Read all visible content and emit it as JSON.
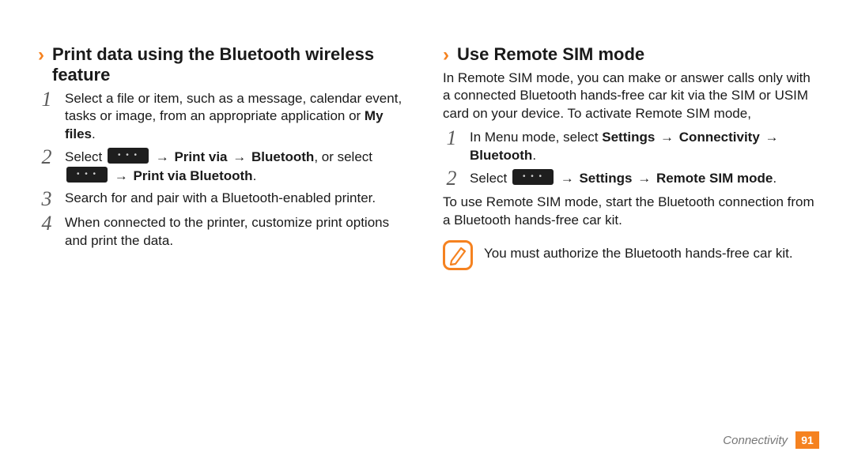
{
  "colors": {
    "accent": "#f58220",
    "text": "#1a1a1a",
    "step_num": "#5a5a5a",
    "dots_btn_bg": "#1e1e1e",
    "dots_btn_fg": "#cfcfcf",
    "footer_text": "#777777",
    "page_bg": "#ffffff"
  },
  "typography": {
    "heading_fontsize": 22,
    "body_fontsize": 17,
    "stepnum_fontsize": 26,
    "footer_fontsize": 15
  },
  "left": {
    "heading": "Print data using the Bluetooth wireless feature",
    "steps": [
      {
        "num": "1",
        "parts": [
          {
            "t": "Select a file or item, such as a message, calendar event, tasks or image, from an appropriate application or "
          },
          {
            "t": "My files",
            "bold": true
          },
          {
            "t": "."
          }
        ]
      },
      {
        "num": "2",
        "parts": [
          {
            "t": "Select "
          },
          {
            "dots": true
          },
          {
            "t": " → ",
            "arrow": true
          },
          {
            "t": "Print via",
            "bold": true
          },
          {
            "t": " → ",
            "arrow": true
          },
          {
            "t": "Bluetooth",
            "bold": true
          },
          {
            "t": ", or select "
          },
          {
            "dots": true
          },
          {
            "t": " → ",
            "arrow": true
          },
          {
            "t": "Print via Bluetooth",
            "bold": true
          },
          {
            "t": "."
          }
        ]
      },
      {
        "num": "3",
        "parts": [
          {
            "t": "Search for and pair with a Bluetooth-enabled printer."
          }
        ]
      },
      {
        "num": "4",
        "parts": [
          {
            "t": "When connected to the printer, customize print options and print the data."
          }
        ]
      }
    ]
  },
  "right": {
    "heading": "Use Remote SIM mode",
    "intro": "In Remote SIM mode, you can make or answer calls only with a connected Bluetooth hands-free car kit via the SIM or USIM card on your device. To activate Remote SIM mode,",
    "steps": [
      {
        "num": "1",
        "parts": [
          {
            "t": "In Menu mode, select "
          },
          {
            "t": "Settings",
            "bold": true
          },
          {
            "t": " → ",
            "arrow": true
          },
          {
            "t": "Connectivity",
            "bold": true
          },
          {
            "t": " → ",
            "arrow": true
          },
          {
            "t": "Bluetooth",
            "bold": true
          },
          {
            "t": "."
          }
        ]
      },
      {
        "num": "2",
        "parts": [
          {
            "t": "Select "
          },
          {
            "dots": true
          },
          {
            "t": " → ",
            "arrow": true
          },
          {
            "t": "Settings",
            "bold": true
          },
          {
            "t": " → ",
            "arrow": true
          },
          {
            "t": "Remote SIM mode",
            "bold": true
          },
          {
            "t": "."
          }
        ]
      }
    ],
    "after": "To use Remote SIM mode, start the Bluetooth connection from a Bluetooth hands-free car kit.",
    "note": "You must authorize the Bluetooth hands-free car kit."
  },
  "footer": {
    "section": "Connectivity",
    "page": "91"
  }
}
